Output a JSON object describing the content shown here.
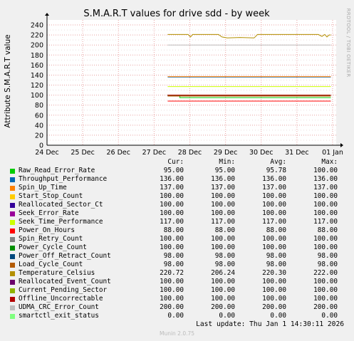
{
  "chart_data": {
    "type": "line",
    "title": "S.M.A.R.T values for drive sdd - by week",
    "ylabel": "Attribute S.M.A.R.T value",
    "side_label": "RRDTOOL / TOBI OETIKER",
    "ylim": [
      0,
      250
    ],
    "xlim": [
      0,
      8.1
    ],
    "y_ticks": [
      "0",
      "10",
      "20",
      "30",
      "40",
      "50",
      "60",
      "70",
      "80",
      "90",
      "100",
      "110",
      "120",
      "130",
      "140",
      "150",
      "160",
      "170",
      "180",
      "190",
      "200",
      "210",
      "220",
      "230",
      "240"
    ],
    "x_ticks": [
      {
        "label": "24 Dec",
        "x": 0
      },
      {
        "label": "25 Dec",
        "x": 1
      },
      {
        "label": "26 Dec",
        "x": 2
      },
      {
        "label": "27 Dec",
        "x": 3
      },
      {
        "label": "28 Dec",
        "x": 4
      },
      {
        "label": "29 Dec",
        "x": 5
      },
      {
        "label": "30 Dec",
        "x": 6
      },
      {
        "label": "31 Dec",
        "x": 7
      },
      {
        "label": "01 Jan",
        "x": 8
      }
    ],
    "grid": true,
    "data_start": 3.38,
    "data_end": 7.95,
    "series": [
      {
        "name": "Raw_Read_Error_Rate",
        "color": "#00cc00",
        "y": 95,
        "cur": "95.00",
        "min": "95.00",
        "avg": "95.78",
        "max": "100.00",
        "points": [
          [
            3.38,
            100
          ],
          [
            3.72,
            100
          ],
          [
            3.72,
            95
          ],
          [
            7.95,
            95
          ]
        ]
      },
      {
        "name": "Throughput_Performance",
        "color": "#0066b3",
        "y": 136,
        "cur": "136.00",
        "min": "136.00",
        "avg": "136.00",
        "max": "136.00"
      },
      {
        "name": "Spin_Up_Time",
        "color": "#ff8000",
        "y": 137,
        "cur": "137.00",
        "min": "137.00",
        "avg": "137.00",
        "max": "137.00"
      },
      {
        "name": "Start_Stop_Count",
        "color": "#ffcc00",
        "y": 100,
        "cur": "100.00",
        "min": "100.00",
        "avg": "100.00",
        "max": "100.00"
      },
      {
        "name": "Reallocated_Sector_Ct",
        "color": "#330099",
        "y": 100,
        "cur": "100.00",
        "min": "100.00",
        "avg": "100.00",
        "max": "100.00"
      },
      {
        "name": "Seek_Error_Rate",
        "color": "#990099",
        "y": 100,
        "cur": "100.00",
        "min": "100.00",
        "avg": "100.00",
        "max": "100.00"
      },
      {
        "name": "Seek_Time_Performance",
        "color": "#ccff00",
        "y": 117,
        "cur": "117.00",
        "min": "117.00",
        "avg": "117.00",
        "max": "117.00"
      },
      {
        "name": "Power_On_Hours",
        "color": "#ff0000",
        "y": 88,
        "cur": "88.00",
        "min": "88.00",
        "avg": "88.00",
        "max": "88.00"
      },
      {
        "name": "Spin_Retry_Count",
        "color": "#808080",
        "y": 100,
        "cur": "100.00",
        "min": "100.00",
        "avg": "100.00",
        "max": "100.00"
      },
      {
        "name": "Power_Cycle_Count",
        "color": "#008f00",
        "y": 100,
        "cur": "100.00",
        "min": "100.00",
        "avg": "100.00",
        "max": "100.00"
      },
      {
        "name": "Power_Off_Retract_Count",
        "color": "#00487d",
        "y": 98,
        "cur": "98.00",
        "min": "98.00",
        "avg": "98.00",
        "max": "98.00"
      },
      {
        "name": "Load_Cycle_Count",
        "color": "#b35a00",
        "y": 98,
        "cur": "98.00",
        "min": "98.00",
        "avg": "98.00",
        "max": "98.00"
      },
      {
        "name": "Temperature_Celsius",
        "color": "#b38f00",
        "y": 220.72,
        "cur": "220.72",
        "min": "206.24",
        "avg": "220.30",
        "max": "222.00",
        "points": [
          [
            3.38,
            221
          ],
          [
            3.95,
            221
          ],
          [
            4.02,
            216
          ],
          [
            4.08,
            221
          ],
          [
            4.8,
            221
          ],
          [
            4.9,
            216
          ],
          [
            5.05,
            214
          ],
          [
            5.4,
            215
          ],
          [
            5.8,
            214
          ],
          [
            5.9,
            221
          ],
          [
            7.6,
            221
          ],
          [
            7.7,
            217
          ],
          [
            7.78,
            221
          ],
          [
            7.84,
            216
          ],
          [
            7.9,
            220
          ],
          [
            7.95,
            220
          ]
        ]
      },
      {
        "name": "Reallocated_Event_Count",
        "color": "#6b006b",
        "y": 100,
        "cur": "100.00",
        "min": "100.00",
        "avg": "100.00",
        "max": "100.00"
      },
      {
        "name": "Current_Pending_Sector",
        "color": "#8fb300",
        "y": 100,
        "cur": "100.00",
        "min": "100.00",
        "avg": "100.00",
        "max": "100.00"
      },
      {
        "name": "Offline_Uncorrectable",
        "color": "#b30000",
        "y": 100,
        "cur": "100.00",
        "min": "100.00",
        "avg": "100.00",
        "max": "100.00"
      },
      {
        "name": "UDMA_CRC_Error_Count",
        "color": "#bebebe",
        "y": 200,
        "cur": "200.00",
        "min": "200.00",
        "avg": "200.00",
        "max": "200.00"
      },
      {
        "name": "smartctl_exit_status",
        "color": "#80ff80",
        "y": 0,
        "cur": "0.00",
        "min": "0.00",
        "avg": "0.00",
        "max": "0.00",
        "points": [
          [
            0,
            0
          ],
          [
            8.1,
            0
          ]
        ]
      }
    ]
  },
  "legend_header": {
    "cur": "Cur:",
    "min": "Min:",
    "avg": "Avg:",
    "max": "Max:"
  },
  "footer": {
    "last_update": "Last update: Thu Jan  1 14:30:11 2026",
    "munin": "Munin 2.0.75"
  }
}
